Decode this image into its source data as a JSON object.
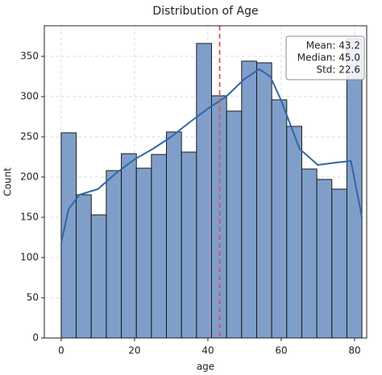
{
  "chart_data": {
    "type": "histogram",
    "title": "Distribution of Age",
    "xlabel": "age",
    "ylabel": "Count",
    "bins": [
      0,
      4.1,
      8.2,
      12.3,
      16.4,
      20.5,
      24.6,
      28.7,
      32.8,
      36.9,
      41,
      45.1,
      49.2,
      53.3,
      57.4,
      61.5,
      65.6,
      69.7,
      73.8,
      77.9,
      82
    ],
    "values": [
      255,
      178,
      153,
      208,
      229,
      211,
      228,
      256,
      231,
      366,
      301,
      282,
      344,
      342,
      296,
      263,
      210,
      197,
      185,
      372
    ],
    "color": "#7f9fca",
    "edgecolor": "#1a1a1a",
    "kde": {
      "color": "#3465a8",
      "x": [
        0,
        2,
        5,
        10,
        15,
        20,
        25,
        30,
        35,
        40,
        45,
        50,
        54,
        57,
        60,
        65,
        70,
        75,
        79,
        82
      ],
      "values": [
        118,
        160,
        178,
        185,
        205,
        222,
        235,
        250,
        268,
        285,
        300,
        322,
        334,
        325,
        295,
        235,
        215,
        218,
        220,
        150
      ]
    },
    "mean_line": {
      "value": 43.2,
      "color": "#e05050"
    },
    "annotation": [
      "Mean: 43.2",
      "Median: 45.0",
      "Std: 22.6"
    ],
    "xlim": [
      -4.6,
      83.3
    ],
    "ylim": [
      0,
      388
    ],
    "xticks": [
      0,
      20,
      40,
      60,
      80
    ],
    "yticks": [
      0,
      50,
      100,
      150,
      200,
      250,
      300,
      350
    ],
    "grid": true
  }
}
